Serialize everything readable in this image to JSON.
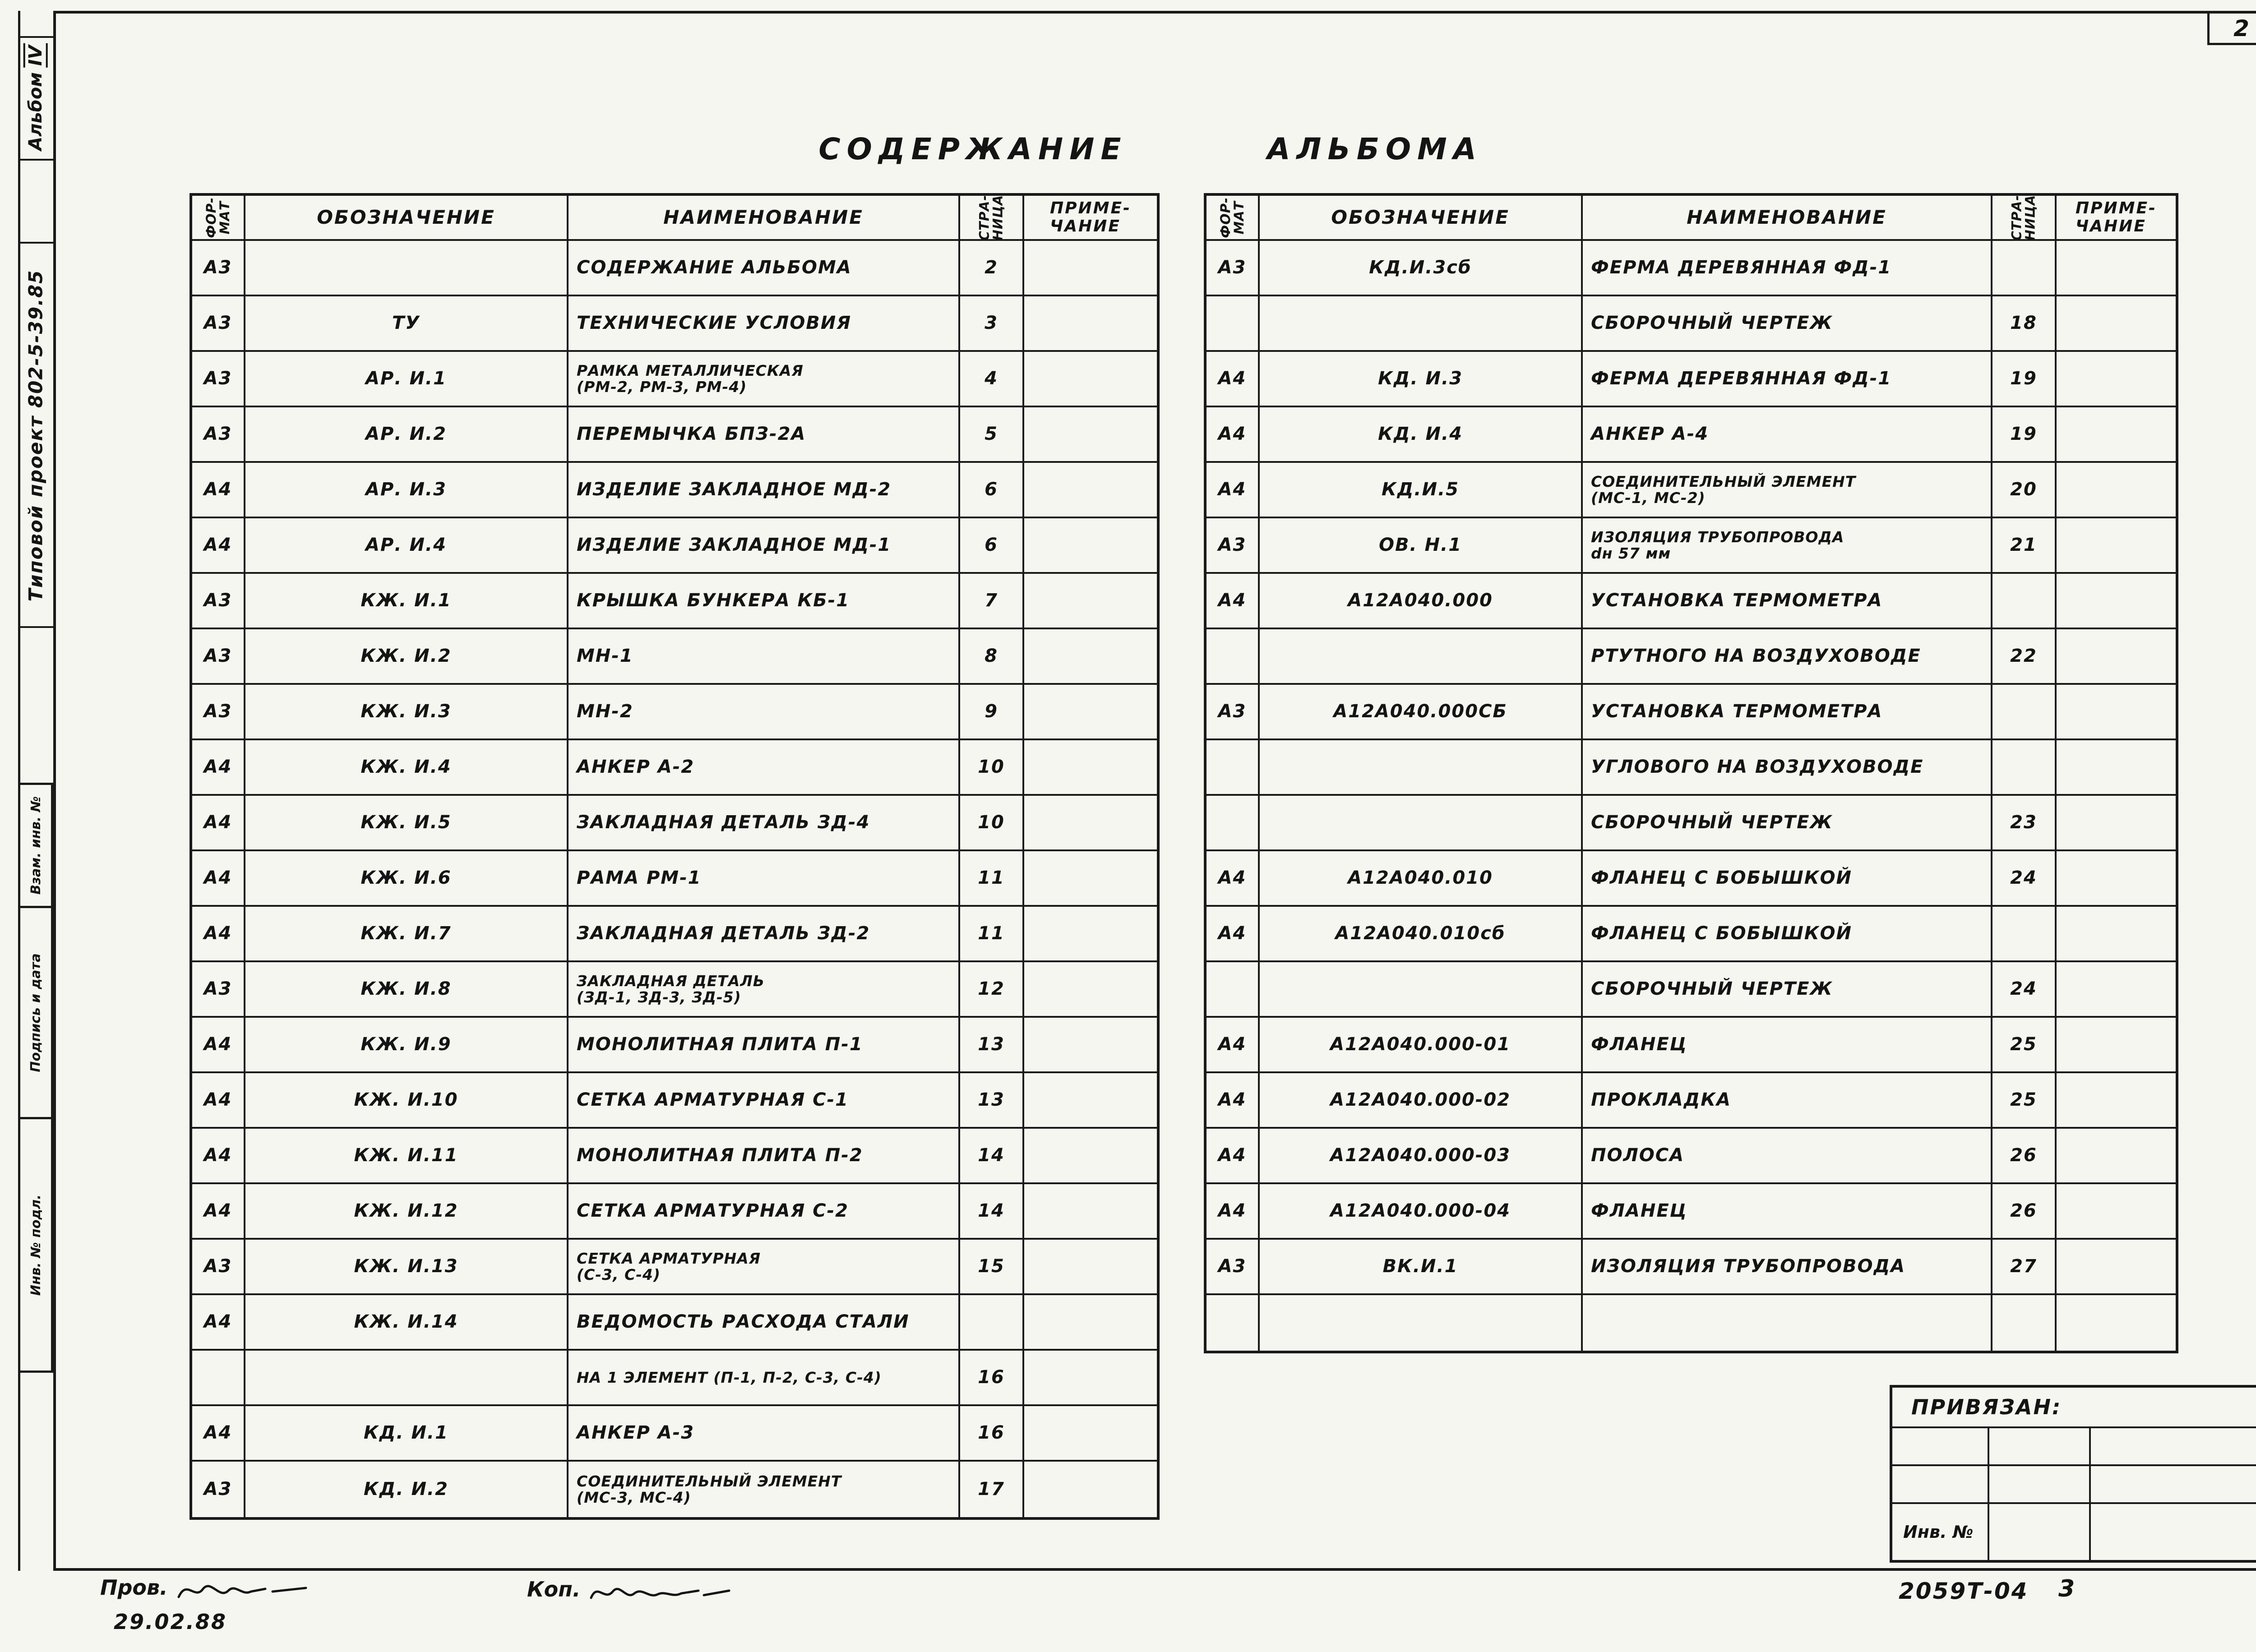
{
  "page": {
    "corner_number": "2",
    "sheet_number": "3",
    "doc_number": "2059Т-04",
    "prov_label": "Пров.",
    "kop_label": "Коп.",
    "date": "29.02.88"
  },
  "title": {
    "word1": "СОДЕРЖАНИЕ",
    "word2": "АЛЬБОМА"
  },
  "sidebar": {
    "album_label": "Альбом",
    "album_roman": "IV",
    "project": "Типовой проект 802-5-39.85",
    "stamp1": "Взам. инв. №",
    "stamp2": "Подпись и дата",
    "stamp3": "Инв. № подл."
  },
  "headers": {
    "format": "ФОР-\nМАТ",
    "designation": "ОБОЗНАЧЕНИЕ",
    "name": "НАИМЕНОВАНИЕ",
    "page": "СТРА-\nНИЦА",
    "note": "ПРИМЕ-\nЧАНИЕ"
  },
  "tables": {
    "left": {
      "rows": [
        {
          "f": "А3",
          "d": "",
          "n": "СОДЕРЖАНИЕ АЛЬБОМА",
          "p": "2"
        },
        {
          "f": "А3",
          "d": "ТУ",
          "n": "ТЕХНИЧЕСКИЕ УСЛОВИЯ",
          "p": "3"
        },
        {
          "f": "А3",
          "d": "АР. И.1",
          "n": "РАМКА МЕТАЛЛИЧЕСКАЯ\n(РМ-2, РМ-3, РМ-4)",
          "p": "4",
          "small": true
        },
        {
          "f": "А3",
          "d": "АР. И.2",
          "n": "ПЕРЕМЫЧКА БПЗ-2А",
          "p": "5"
        },
        {
          "f": "А4",
          "d": "АР. И.3",
          "n": "ИЗДЕЛИЕ ЗАКЛАДНОЕ МД-2",
          "p": "6"
        },
        {
          "f": "А4",
          "d": "АР. И.4",
          "n": "ИЗДЕЛИЕ ЗАКЛАДНОЕ МД-1",
          "p": "6"
        },
        {
          "f": "А3",
          "d": "КЖ. И.1",
          "n": "КРЫШКА БУНКЕРА КБ-1",
          "p": "7"
        },
        {
          "f": "А3",
          "d": "КЖ. И.2",
          "n": "МН-1",
          "p": "8"
        },
        {
          "f": "А3",
          "d": "КЖ. И.3",
          "n": "МН-2",
          "p": "9"
        },
        {
          "f": "А4",
          "d": "КЖ. И.4",
          "n": "АНКЕР  А-2",
          "p": "10"
        },
        {
          "f": "А4",
          "d": "КЖ. И.5",
          "n": "ЗАКЛАДНАЯ ДЕТАЛЬ ЗД-4",
          "p": "10"
        },
        {
          "f": "А4",
          "d": "КЖ. И.6",
          "n": "РАМА   РМ-1",
          "p": "11"
        },
        {
          "f": "А4",
          "d": "КЖ. И.7",
          "n": "ЗАКЛАДНАЯ ДЕТАЛЬ ЗД-2",
          "p": "11"
        },
        {
          "f": "А3",
          "d": "КЖ. И.8",
          "n": "ЗАКЛАДНАЯ ДЕТАЛЬ\n(ЗД-1, ЗД-3, ЗД-5)",
          "p": "12",
          "small": true
        },
        {
          "f": "А4",
          "d": "КЖ. И.9",
          "n": "МОНОЛИТНАЯ ПЛИТА П-1",
          "p": "13"
        },
        {
          "f": "А4",
          "d": "КЖ. И.10",
          "n": "СЕТКА АРМАТУРНАЯ С-1",
          "p": "13"
        },
        {
          "f": "А4",
          "d": "КЖ. И.11",
          "n": "МОНОЛИТНАЯ ПЛИТА П-2",
          "p": "14"
        },
        {
          "f": "А4",
          "d": "КЖ. И.12",
          "n": "СЕТКА АРМАТУРНАЯ С-2",
          "p": "14"
        },
        {
          "f": "А3",
          "d": "КЖ. И.13",
          "n": "СЕТКА АРМАТУРНАЯ\n(С-3, С-4)",
          "p": "15",
          "small": true
        },
        {
          "f": "А4",
          "d": "КЖ. И.14",
          "n": "ВЕДОМОСТЬ РАСХОДА СТАЛИ",
          "p": ""
        },
        {
          "f": "",
          "d": "",
          "n": "НА 1 ЭЛЕМЕНТ (П-1, П-2, С-3, С-4)",
          "p": "16",
          "small": true
        },
        {
          "f": "А4",
          "d": "КД. И.1",
          "n": "АНКЕР   А-3",
          "p": "16"
        },
        {
          "f": "А3",
          "d": "КД. И.2",
          "n": "СОЕДИНИТЕЛЬНЫЙ ЭЛЕМЕНТ\n(МС-3, МС-4)",
          "p": "17",
          "small": true
        }
      ]
    },
    "right": {
      "rows": [
        {
          "f": "А3",
          "d": "КД.И.3сб",
          "n": "ФЕРМА ДЕРЕВЯННАЯ ФД-1",
          "p": ""
        },
        {
          "f": "",
          "d": "",
          "n": "СБОРОЧНЫЙ ЧЕРТЕЖ",
          "p": "18"
        },
        {
          "f": "А4",
          "d": "КД. И.3",
          "n": "ФЕРМА ДЕРЕВЯННАЯ ФД-1",
          "p": "19"
        },
        {
          "f": "А4",
          "d": "КД. И.4",
          "n": "АНКЕР  А-4",
          "p": "19"
        },
        {
          "f": "А4",
          "d": "КД.И.5",
          "n": "СОЕДИНИТЕЛЬНЫЙ ЭЛЕМЕНТ\n(МС-1, МС-2)",
          "p": "20",
          "small": true
        },
        {
          "f": "А3",
          "d": "ОВ. Н.1",
          "n": "ИЗОЛЯЦИЯ ТРУБОПРОВОДА\ndн 57 мм",
          "p": "21",
          "small": true
        },
        {
          "f": "А4",
          "d": "А12А040.000",
          "n": "УСТАНОВКА ТЕРМОМЕТРА",
          "p": ""
        },
        {
          "f": "",
          "d": "",
          "n": "РТУТНОГО НА ВОЗДУХОВОДЕ",
          "p": "22"
        },
        {
          "f": "А3",
          "d": "А12А040.000СБ",
          "n": "УСТАНОВКА ТЕРМОМЕТРА",
          "p": ""
        },
        {
          "f": "",
          "d": "",
          "n": "УГЛОВОГО НА ВОЗДУХОВОДЕ",
          "p": ""
        },
        {
          "f": "",
          "d": "",
          "n": "СБОРОЧНЫЙ ЧЕРТЕЖ",
          "p": "23"
        },
        {
          "f": "А4",
          "d": "А12А040.010",
          "n": "ФЛАНЕЦ С БОБЫШКОЙ",
          "p": "24"
        },
        {
          "f": "А4",
          "d": "А12А040.010сб",
          "n": "ФЛАНЕЦ С БОБЫШКОЙ",
          "p": ""
        },
        {
          "f": "",
          "d": "",
          "n": "СБОРОЧНЫЙ ЧЕРТЕЖ",
          "p": "24"
        },
        {
          "f": "А4",
          "d": "А12А040.000-01",
          "n": "ФЛАНЕЦ",
          "p": "25"
        },
        {
          "f": "А4",
          "d": "А12А040.000-02",
          "n": "ПРОКЛАДКА",
          "p": "25"
        },
        {
          "f": "А4",
          "d": "А12А040.000-03",
          "n": "ПОЛОСА",
          "p": "26"
        },
        {
          "f": "А4",
          "d": "А12А040.000-04",
          "n": "ФЛАНЕЦ",
          "p": "26"
        },
        {
          "f": "А3",
          "d": "ВК.И.1",
          "n": "ИЗОЛЯЦИЯ ТРУБОПРОВОДА",
          "p": "27"
        },
        {
          "f": "",
          "d": "",
          "n": "",
          "p": ""
        }
      ]
    }
  },
  "privyazan": {
    "title": "ПРИВЯЗАН:",
    "inv_label": "Инв. №"
  }
}
